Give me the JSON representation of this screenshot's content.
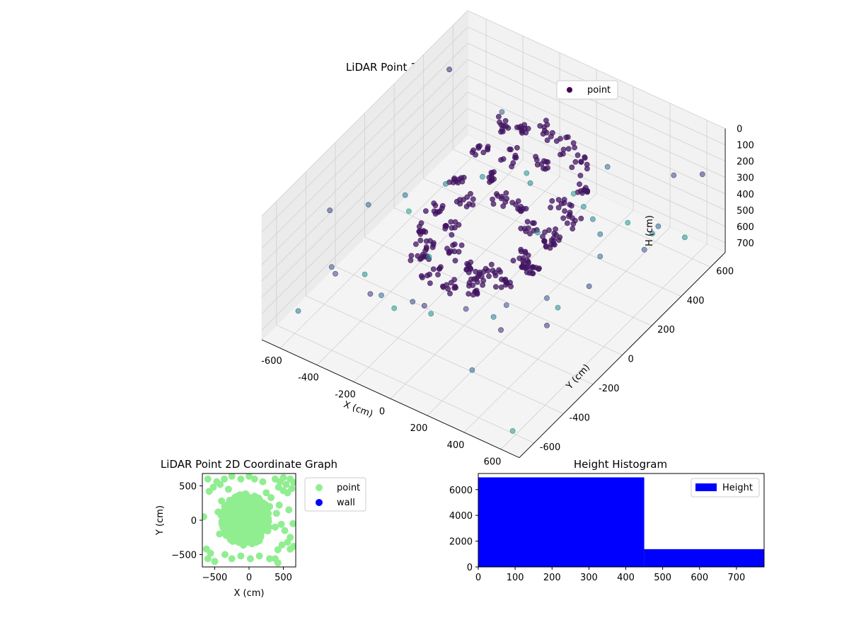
{
  "chart_data": [
    {
      "type": "scatter",
      "projection": "3d",
      "title": "LiDAR Point 3D Coordinate Graph",
      "xlabel": "X (cm)",
      "ylabel": "Y (cm)",
      "zlabel": "H (cm)",
      "xlim": [
        -700,
        700
      ],
      "ylim": [
        -700,
        700
      ],
      "zlim": [
        0,
        760
      ],
      "z_inverted": true,
      "xticks": [
        "-600",
        "-400",
        "-200",
        "0",
        "200",
        "400",
        "600"
      ],
      "yticks": [
        "-600",
        "-400",
        "-200",
        "0",
        "200",
        "400",
        "600"
      ],
      "zticks": [
        "0",
        "100",
        "200",
        "300",
        "400",
        "500",
        "600",
        "700"
      ],
      "grid": true,
      "legend": {
        "position": "top-right",
        "entries": [
          "point"
        ]
      },
      "colormap": "viridis (color by height/distance)",
      "series": [
        {
          "name": "point",
          "legend_color": "#440154",
          "description": "dense ring-shaped cluster near center with sparse outliers",
          "dense_ring": [
            [
              -200,
              300,
              90
            ],
            [
              -100,
              340,
              80
            ],
            [
              0,
              360,
              70
            ],
            [
              120,
              340,
              80
            ],
            [
              230,
              290,
              100
            ],
            [
              320,
              200,
              130
            ],
            [
              360,
              80,
              170
            ],
            [
              360,
              -40,
              220
            ],
            [
              320,
              -150,
              280
            ],
            [
              240,
              -240,
              340
            ],
            [
              130,
              -290,
              380
            ],
            [
              0,
              -300,
              420
            ],
            [
              -120,
              -280,
              430
            ],
            [
              -220,
              -220,
              440
            ],
            [
              -290,
              -120,
              420
            ],
            [
              -320,
              0,
              380
            ],
            [
              -300,
              120,
              320
            ],
            [
              -250,
              230,
              200
            ],
            [
              -150,
              150,
              250
            ],
            [
              -50,
              100,
              280
            ],
            [
              50,
              120,
              300
            ],
            [
              150,
              50,
              320
            ],
            [
              200,
              -60,
              360
            ],
            [
              120,
              -150,
              400
            ],
            [
              0,
              -180,
              420
            ],
            [
              -100,
              -140,
              410
            ],
            [
              -180,
              -40,
              380
            ],
            [
              -200,
              60,
              340
            ],
            [
              60,
              250,
              150
            ],
            [
              250,
              150,
              200
            ],
            [
              -100,
              250,
              180
            ],
            [
              280,
              -100,
              350
            ],
            [
              -250,
              -150,
              430
            ],
            [
              80,
              -230,
              410
            ],
            [
              300,
              20,
              260
            ]
          ],
          "outliers": [
            [
              -650,
              -300,
              300
            ],
            [
              -600,
              -100,
              420
            ],
            [
              -560,
              100,
              520
            ],
            [
              -500,
              300,
              600
            ],
            [
              -480,
              -500,
              380
            ],
            [
              -420,
              450,
              650
            ],
            [
              -380,
              -600,
              280
            ],
            [
              -300,
              600,
              700
            ],
            [
              -250,
              -450,
              480
            ],
            [
              -200,
              500,
              620
            ],
            [
              -150,
              -650,
              240
            ],
            [
              -60,
              620,
              720
            ],
            [
              0,
              -550,
              300
            ],
            [
              50,
              550,
              680
            ],
            [
              120,
              -620,
              200
            ],
            [
              180,
              450,
              600
            ],
            [
              250,
              -500,
              260
            ],
            [
              300,
              350,
              540
            ],
            [
              350,
              -350,
              320
            ],
            [
              420,
              200,
              480
            ],
            [
              450,
              -200,
              360
            ],
            [
              500,
              600,
              300
            ],
            [
              520,
              -600,
              160
            ],
            [
              560,
              420,
              420
            ],
            [
              600,
              -100,
              300
            ],
            [
              620,
              250,
              380
            ],
            [
              650,
              -450,
              200
            ],
            [
              -640,
              500,
              150
            ],
            [
              -550,
              -640,
              560
            ],
            [
              640,
              620,
              240
            ],
            [
              -350,
              0,
              700
            ],
            [
              350,
              0,
              650
            ],
            [
              0,
              300,
              640
            ],
            [
              -100,
              -300,
              650
            ],
            [
              200,
              -250,
              560
            ],
            [
              -500,
              -250,
              660
            ],
            [
              480,
              480,
              560
            ],
            [
              -450,
              620,
              420
            ],
            [
              380,
              -620,
              460
            ],
            [
              100,
              650,
              500
            ],
            [
              -620,
              200,
              740
            ],
            [
              600,
              -620,
              720
            ],
            [
              560,
              600,
              650
            ],
            [
              -300,
              -300,
              720
            ],
            [
              250,
              600,
              720
            ]
          ]
        }
      ]
    },
    {
      "type": "scatter",
      "title": "LiDAR Point 2D Coordinate Graph",
      "xlabel": "X (cm)",
      "ylabel": "Y (cm)",
      "xlim": [
        -680,
        680
      ],
      "ylim": [
        -680,
        680
      ],
      "xticks": [
        -500,
        0,
        500
      ],
      "yticks": [
        -500,
        0,
        500
      ],
      "legend": {
        "position": "right outside",
        "entries": [
          "point",
          "wall"
        ]
      },
      "series": [
        {
          "name": "point",
          "color": "#90ee90",
          "description": "dense circular blob of points, ~radius 350 cm, centered near (-50, 0)",
          "blob": {
            "center": [
              -50,
              10
            ],
            "radius": 360
          },
          "scatter": [
            [
              -620,
              -420
            ],
            [
              -560,
              -480
            ],
            [
              -600,
              -560
            ],
            [
              -500,
              -600
            ],
            [
              -660,
              50
            ],
            [
              -580,
              420
            ],
            [
              -520,
              480
            ],
            [
              -470,
              560
            ],
            [
              -420,
              520
            ],
            [
              -600,
              600
            ],
            [
              -360,
              600
            ],
            [
              -250,
              640
            ],
            [
              -120,
              600
            ],
            [
              0,
              640
            ],
            [
              80,
              600
            ],
            [
              200,
              560
            ],
            [
              380,
              600
            ],
            [
              450,
              560
            ],
            [
              500,
              620
            ],
            [
              540,
              520
            ],
            [
              600,
              600
            ],
            [
              650,
              550
            ],
            [
              620,
              460
            ],
            [
              560,
              400
            ],
            [
              500,
              430
            ],
            [
              430,
              480
            ],
            [
              520,
              -150
            ],
            [
              600,
              -250
            ],
            [
              560,
              -320
            ],
            [
              480,
              -360
            ],
            [
              600,
              -420
            ],
            [
              650,
              -380
            ],
            [
              420,
              -430
            ],
            [
              380,
              -560
            ],
            [
              420,
              -620
            ],
            [
              300,
              -560
            ],
            [
              -350,
              -500
            ],
            [
              -250,
              -560
            ],
            [
              -120,
              -520
            ],
            [
              20,
              -560
            ],
            [
              150,
              -520
            ],
            [
              -430,
              -200
            ],
            [
              -450,
              120
            ],
            [
              -400,
              280
            ],
            [
              400,
              100
            ],
            [
              380,
              -100
            ],
            [
              300,
              200
            ],
            [
              250,
              400
            ],
            [
              -300,
              450
            ],
            [
              320,
              330
            ],
            [
              440,
              220
            ],
            [
              580,
              150
            ],
            [
              640,
              -50
            ],
            [
              470,
              -60
            ]
          ]
        },
        {
          "name": "wall",
          "color": "#0000ff",
          "points": []
        }
      ]
    },
    {
      "type": "bar",
      "histogram": true,
      "title": "Height Histogram",
      "xlabel": "",
      "ylabel": "",
      "xlim": [
        0,
        775
      ],
      "ylim": [
        0,
        7250
      ],
      "xticks": [
        0,
        100,
        200,
        300,
        400,
        500,
        600,
        700
      ],
      "yticks": [
        0,
        2000,
        4000,
        6000
      ],
      "legend": {
        "position": "top-right",
        "entries": [
          "Height"
        ]
      },
      "series": [
        {
          "name": "Height",
          "color": "#0000ff",
          "bins": [
            {
              "start": 0,
              "end": 450,
              "count": 6950
            },
            {
              "start": 450,
              "end": 775,
              "count": 1380
            }
          ]
        }
      ]
    }
  ]
}
